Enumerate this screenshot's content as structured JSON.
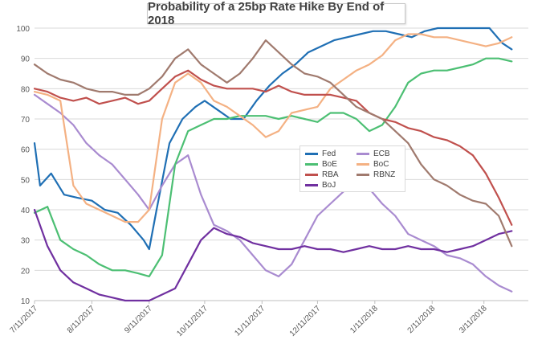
{
  "chart_data": {
    "type": "line",
    "title": "Probability of a 25bp Rate Hike By End of 2018",
    "xlabel": "",
    "ylabel": "",
    "x_ticks": [
      "7/11/2017",
      "8/11/2017",
      "9/11/2017",
      "10/11/2017",
      "11/11/2017",
      "12/11/2017",
      "1/11/2018",
      "2/11/2018",
      "3/11/2018"
    ],
    "ylim": [
      10,
      100
    ],
    "y_ticks": [
      10,
      20,
      30,
      40,
      50,
      60,
      70,
      80,
      90,
      100
    ],
    "grid": "horizontal",
    "legend_placement": "center-right",
    "series": [
      {
        "name": "Fed",
        "color": "#1f6fb4",
        "x": [
          "2017-07-11",
          "2017-07-14",
          "2017-07-20",
          "2017-07-27",
          "2017-08-03",
          "2017-08-11",
          "2017-08-18",
          "2017-08-25",
          "2017-09-01",
          "2017-09-08",
          "2017-09-11",
          "2017-09-15",
          "2017-09-22",
          "2017-09-29",
          "2017-10-06",
          "2017-10-11",
          "2017-10-18",
          "2017-10-25",
          "2017-11-01",
          "2017-11-08",
          "2017-11-15",
          "2017-11-22",
          "2017-11-29",
          "2017-12-06",
          "2017-12-13",
          "2017-12-20",
          "2017-12-27",
          "2018-01-03",
          "2018-01-10",
          "2018-01-17",
          "2018-01-24",
          "2018-01-31",
          "2018-02-07",
          "2018-02-14",
          "2018-02-21",
          "2018-02-28",
          "2018-03-07",
          "2018-03-14",
          "2018-03-21",
          "2018-03-26"
        ],
        "values": [
          62,
          48,
          52,
          45,
          44,
          43,
          40,
          39,
          35,
          30,
          27,
          40,
          62,
          70,
          74,
          76,
          73,
          70,
          70,
          76,
          81,
          85,
          88,
          92,
          94,
          96,
          97,
          98,
          99,
          99,
          98,
          97,
          99,
          100,
          100,
          100,
          100,
          100,
          95,
          93
        ]
      },
      {
        "name": "ECB",
        "color": "#a98bd0",
        "x": [
          "2017-07-11",
          "2017-07-18",
          "2017-07-25",
          "2017-08-01",
          "2017-08-08",
          "2017-08-15",
          "2017-08-22",
          "2017-08-29",
          "2017-09-05",
          "2017-09-11",
          "2017-09-18",
          "2017-09-25",
          "2017-10-02",
          "2017-10-09",
          "2017-10-16",
          "2017-10-23",
          "2017-10-30",
          "2017-11-06",
          "2017-11-13",
          "2017-11-20",
          "2017-11-27",
          "2017-12-04",
          "2017-12-11",
          "2017-12-18",
          "2017-12-25",
          "2018-01-01",
          "2018-01-08",
          "2018-01-15",
          "2018-01-22",
          "2018-01-29",
          "2018-02-05",
          "2018-02-12",
          "2018-02-19",
          "2018-02-26",
          "2018-03-05",
          "2018-03-12",
          "2018-03-19",
          "2018-03-26"
        ],
        "values": [
          78,
          75,
          72,
          68,
          62,
          58,
          55,
          50,
          45,
          40,
          48,
          55,
          58,
          45,
          35,
          33,
          30,
          25,
          20,
          18,
          22,
          30,
          38,
          42,
          46,
          48,
          47,
          42,
          38,
          32,
          30,
          28,
          25,
          24,
          22,
          18,
          15,
          13
        ]
      },
      {
        "name": "BoE",
        "color": "#4cbf73",
        "x": [
          "2017-07-11",
          "2017-07-18",
          "2017-07-25",
          "2017-08-01",
          "2017-08-08",
          "2017-08-15",
          "2017-08-22",
          "2017-08-29",
          "2017-09-05",
          "2017-09-11",
          "2017-09-18",
          "2017-09-25",
          "2017-10-02",
          "2017-10-09",
          "2017-10-16",
          "2017-10-23",
          "2017-10-30",
          "2017-11-06",
          "2017-11-13",
          "2017-11-20",
          "2017-11-27",
          "2017-12-04",
          "2017-12-11",
          "2017-12-18",
          "2017-12-25",
          "2018-01-01",
          "2018-01-08",
          "2018-01-15",
          "2018-01-22",
          "2018-01-29",
          "2018-02-05",
          "2018-02-12",
          "2018-02-19",
          "2018-02-26",
          "2018-03-05",
          "2018-03-12",
          "2018-03-19",
          "2018-03-26"
        ],
        "values": [
          39,
          41,
          30,
          27,
          25,
          22,
          20,
          20,
          19,
          18,
          25,
          55,
          66,
          68,
          70,
          70,
          71,
          71,
          71,
          70,
          71,
          70,
          69,
          72,
          72,
          70,
          66,
          68,
          74,
          82,
          85,
          86,
          86,
          87,
          88,
          90,
          90,
          89
        ]
      },
      {
        "name": "BoC",
        "color": "#f4b183",
        "x": [
          "2017-07-11",
          "2017-07-18",
          "2017-07-25",
          "2017-08-01",
          "2017-08-08",
          "2017-08-15",
          "2017-08-22",
          "2017-08-29",
          "2017-09-05",
          "2017-09-11",
          "2017-09-18",
          "2017-09-25",
          "2017-10-02",
          "2017-10-09",
          "2017-10-16",
          "2017-10-23",
          "2017-10-30",
          "2017-11-06",
          "2017-11-13",
          "2017-11-20",
          "2017-11-27",
          "2017-12-04",
          "2017-12-11",
          "2017-12-18",
          "2017-12-25",
          "2018-01-01",
          "2018-01-08",
          "2018-01-15",
          "2018-01-22",
          "2018-01-29",
          "2018-02-05",
          "2018-02-12",
          "2018-02-19",
          "2018-02-26",
          "2018-03-05",
          "2018-03-12",
          "2018-03-19",
          "2018-03-26"
        ],
        "values": [
          79,
          78,
          76,
          48,
          42,
          40,
          38,
          36,
          36,
          40,
          70,
          82,
          85,
          82,
          76,
          74,
          71,
          68,
          64,
          66,
          72,
          73,
          74,
          80,
          83,
          86,
          88,
          91,
          96,
          98,
          98,
          97,
          97,
          96,
          95,
          94,
          95,
          97
        ]
      },
      {
        "name": "RBA",
        "color": "#c0504d",
        "x": [
          "2017-07-11",
          "2017-07-18",
          "2017-07-25",
          "2017-08-01",
          "2017-08-08",
          "2017-08-15",
          "2017-08-22",
          "2017-08-29",
          "2017-09-05",
          "2017-09-11",
          "2017-09-18",
          "2017-09-25",
          "2017-10-02",
          "2017-10-09",
          "2017-10-16",
          "2017-10-23",
          "2017-10-30",
          "2017-11-06",
          "2017-11-13",
          "2017-11-20",
          "2017-11-27",
          "2017-12-04",
          "2017-12-11",
          "2017-12-18",
          "2017-12-25",
          "2018-01-01",
          "2018-01-08",
          "2018-01-15",
          "2018-01-22",
          "2018-01-29",
          "2018-02-05",
          "2018-02-12",
          "2018-02-19",
          "2018-02-26",
          "2018-03-05",
          "2018-03-12",
          "2018-03-19",
          "2018-03-26"
        ],
        "values": [
          80,
          79,
          77,
          76,
          77,
          75,
          76,
          77,
          75,
          76,
          80,
          84,
          86,
          83,
          81,
          80,
          80,
          80,
          79,
          81,
          79,
          78,
          78,
          78,
          77,
          76,
          72,
          70,
          69,
          67,
          66,
          64,
          63,
          61,
          58,
          52,
          44,
          35
        ]
      },
      {
        "name": "BoJ",
        "color": "#7030a0",
        "x": [
          "2017-07-11",
          "2017-07-18",
          "2017-07-25",
          "2017-08-01",
          "2017-08-08",
          "2017-08-15",
          "2017-08-22",
          "2017-08-29",
          "2017-09-05",
          "2017-09-11",
          "2017-09-18",
          "2017-09-25",
          "2017-10-02",
          "2017-10-09",
          "2017-10-16",
          "2017-10-23",
          "2017-10-30",
          "2017-11-06",
          "2017-11-13",
          "2017-11-20",
          "2017-11-27",
          "2017-12-04",
          "2017-12-11",
          "2017-12-18",
          "2017-12-25",
          "2018-01-01",
          "2018-01-08",
          "2018-01-15",
          "2018-01-22",
          "2018-01-29",
          "2018-02-05",
          "2018-02-12",
          "2018-02-19",
          "2018-02-26",
          "2018-03-05",
          "2018-03-12",
          "2018-03-19",
          "2018-03-26"
        ],
        "values": [
          40,
          28,
          20,
          16,
          14,
          12,
          11,
          10,
          10,
          10,
          12,
          14,
          22,
          30,
          34,
          32,
          31,
          29,
          28,
          27,
          27,
          28,
          27,
          27,
          26,
          27,
          28,
          27,
          27,
          28,
          27,
          27,
          26,
          27,
          28,
          30,
          32,
          33
        ]
      },
      {
        "name": "RBNZ",
        "color": "#a07a6e",
        "x": [
          "2017-07-11",
          "2017-07-18",
          "2017-07-25",
          "2017-08-01",
          "2017-08-08",
          "2017-08-15",
          "2017-08-22",
          "2017-08-29",
          "2017-09-05",
          "2017-09-11",
          "2017-09-18",
          "2017-09-25",
          "2017-10-02",
          "2017-10-09",
          "2017-10-16",
          "2017-10-23",
          "2017-10-30",
          "2017-11-06",
          "2017-11-13",
          "2017-11-20",
          "2017-11-27",
          "2017-12-04",
          "2017-12-11",
          "2017-12-18",
          "2017-12-25",
          "2018-01-01",
          "2018-01-08",
          "2018-01-15",
          "2018-01-22",
          "2018-01-29",
          "2018-02-05",
          "2018-02-12",
          "2018-02-19",
          "2018-02-26",
          "2018-03-05",
          "2018-03-12",
          "2018-03-19",
          "2018-03-26"
        ],
        "values": [
          88,
          85,
          83,
          82,
          80,
          79,
          79,
          78,
          78,
          80,
          84,
          90,
          93,
          88,
          85,
          82,
          85,
          90,
          96,
          92,
          88,
          85,
          84,
          82,
          78,
          74,
          72,
          70,
          66,
          62,
          55,
          50,
          48,
          45,
          43,
          42,
          38,
          28
        ]
      }
    ]
  }
}
